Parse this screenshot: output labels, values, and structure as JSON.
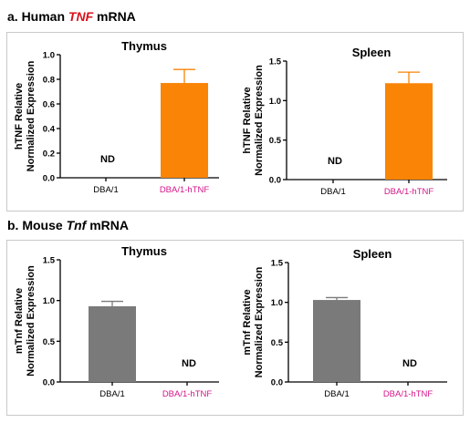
{
  "sections": [
    {
      "prefix": "a. Human ",
      "gene": "TNF",
      "gene_color": "#d9121b",
      "suffix": " mRNA"
    },
    {
      "prefix": "b. Mouse ",
      "gene": "Tnf",
      "gene_color": "#000000",
      "suffix": " mRNA"
    }
  ],
  "colors": {
    "orange": "#f98406",
    "gray": "#7a7a7a",
    "magenta": "#d4168a",
    "black": "#000000"
  },
  "chart_data": [
    {
      "type": "bar",
      "title": "Thymus",
      "ylabel_lines": [
        "hTNF Relative",
        "Normalized Expression"
      ],
      "categories": [
        "DBA/1",
        "DBA/1-hTNF"
      ],
      "values": [
        0,
        0.77
      ],
      "errors": [
        0,
        0.11
      ],
      "labels": [
        "ND",
        ""
      ],
      "ylim": [
        0,
        1.0
      ],
      "yticks": [
        "0.0",
        "0.2",
        "0.4",
        "0.6",
        "0.8",
        "1.0"
      ],
      "bar_color": "orange",
      "category_colors": [
        "black",
        "magenta"
      ]
    },
    {
      "type": "bar",
      "title": "Spleen",
      "ylabel_lines": [
        "hTNF Relative",
        "Normalized Expression"
      ],
      "categories": [
        "DBA/1",
        "DBA/1-hTNF"
      ],
      "values": [
        0,
        1.22
      ],
      "errors": [
        0,
        0.14
      ],
      "labels": [
        "ND",
        ""
      ],
      "ylim": [
        0,
        1.5
      ],
      "yticks": [
        "0.0",
        "0.5",
        "1.0",
        "1.5"
      ],
      "bar_color": "orange",
      "category_colors": [
        "black",
        "magenta"
      ]
    },
    {
      "type": "bar",
      "title": "Thymus",
      "ylabel_lines": [
        "mTnf Relative",
        "Normalized Expression"
      ],
      "categories": [
        "DBA/1",
        "DBA/1-hTNF"
      ],
      "values": [
        0.93,
        0
      ],
      "errors": [
        0.06,
        0
      ],
      "labels": [
        "",
        "ND"
      ],
      "ylim": [
        0,
        1.5
      ],
      "yticks": [
        "0.0",
        "0.5",
        "1.0",
        "1.5"
      ],
      "bar_color": "gray",
      "category_colors": [
        "black",
        "magenta"
      ]
    },
    {
      "type": "bar",
      "title": "Spleen",
      "ylabel_lines": [
        "mTnf Relative",
        "Normalized Expression"
      ],
      "categories": [
        "DBA/1",
        "DBA/1-hTNF"
      ],
      "values": [
        1.03,
        0
      ],
      "errors": [
        0.03,
        0
      ],
      "labels": [
        "",
        "ND"
      ],
      "ylim": [
        0,
        1.5
      ],
      "yticks": [
        "0.0",
        "0.5",
        "1.0",
        "1.5"
      ],
      "bar_color": "gray",
      "category_colors": [
        "black",
        "magenta"
      ]
    }
  ]
}
